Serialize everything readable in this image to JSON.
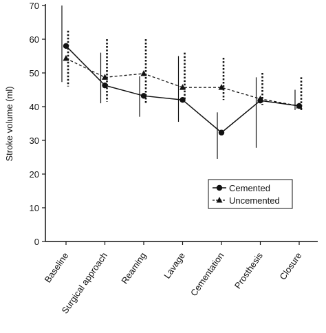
{
  "chart_data": {
    "type": "line",
    "title": "",
    "xlabel": "",
    "ylabel": "Stroke volume (ml)",
    "ylim": [
      0,
      70
    ],
    "yticks": [
      0,
      10,
      20,
      30,
      40,
      50,
      60,
      70
    ],
    "grid": false,
    "legend_position": "bottom-right",
    "categories": [
      "Baseline",
      "Surgical approach",
      "Reaming",
      "Lavage",
      "Cementation",
      "Prosthesis",
      "Closure"
    ],
    "series": [
      {
        "name": "Cemented",
        "marker": "circle",
        "line_style": "solid",
        "values": [
          58,
          46.3,
          43.2,
          42,
          32.3,
          41.8,
          40.2
        ],
        "error_upper": [
          70,
          56,
          49,
          55,
          38.3,
          48.7,
          45
        ],
        "error_lower": [
          47.3,
          41,
          37,
          35.5,
          24.5,
          27.8,
          39
        ]
      },
      {
        "name": "Uncemented",
        "marker": "triangle",
        "line_style": "dashed",
        "values": [
          54.3,
          48.7,
          49.8,
          45.7,
          45.7,
          42.3,
          40.2
        ],
        "error_upper": [
          62.5,
          60,
          60,
          56,
          54.5,
          50,
          48.7
        ],
        "error_lower": [
          46,
          41.5,
          41,
          42,
          42,
          40.5,
          38.5
        ]
      }
    ],
    "legend": [
      "Cemented",
      "Uncemented"
    ]
  }
}
